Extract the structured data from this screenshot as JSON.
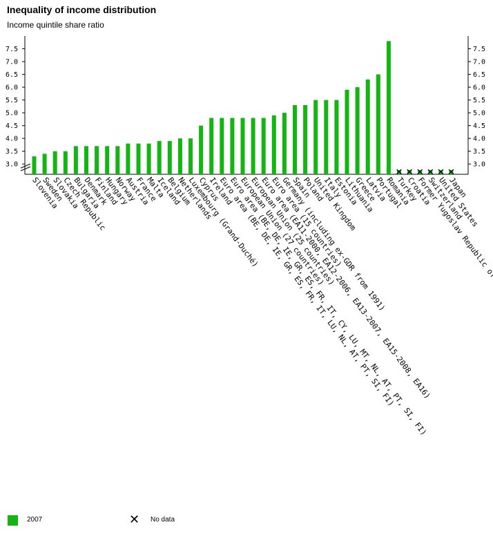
{
  "title": "Inequality of income distribution",
  "subtitle": "Income quintile share ratio",
  "legend": {
    "series_label": "2007",
    "nodata_label": "No data",
    "series_color": "#12b512",
    "nodata_icon": "x-mark-icon"
  },
  "chart_data": {
    "type": "bar",
    "title": "Inequality of income distribution",
    "subtitle": "Income quintile share ratio",
    "ylim": [
      2.5,
      8.0
    ],
    "yticks": [
      "3.0",
      "3.5",
      "4.0",
      "4.5",
      "5.0",
      "5.5",
      "6.0",
      "6.5",
      "7.0",
      "7.5"
    ],
    "axis_break": true,
    "grid": false,
    "series": [
      {
        "name": "2007",
        "color": "#12b512"
      }
    ],
    "categories": [
      "Slovenia",
      "Sweden",
      "Slovakia",
      "Czech Republic",
      "Bulgaria",
      "Denmark",
      "Finland",
      "Hungary",
      "Norway",
      "Austria",
      "France",
      "Malta",
      "Iceland",
      "Belgium",
      "Netherlands",
      "Luxembourg (Grand-Duché)",
      "Cyprus",
      "Ireland",
      "Euro area (BE, DE, IE, GR, ES, FR, IT, LU, NL, AT, PT, SI, FI)",
      "Euro area (BE, DE, IE, GR, ES, FR, IT, CY, LU, MT, NL, AT, PT, SI, FI)",
      "European Union (27 countries)",
      "European Union (25 countries)",
      "Euro area (EA11-2000, EA12-2006, EA13-2007, EA15-2008, EA16)",
      "Euro area (15 countries)",
      "Germany (including ex-GDR from 1991)",
      "Spain",
      "Poland",
      "United Kingdom",
      "Italy",
      "Estonia",
      "Lithuania",
      "Greece",
      "Latvia",
      "Portugal",
      "Romania",
      "Turkey",
      "Croatia",
      "Former Yugoslav Republic of Macedonia, the",
      "Switzerland",
      "United States",
      "Japan"
    ],
    "values": [
      3.3,
      3.4,
      3.5,
      3.5,
      3.7,
      3.7,
      3.7,
      3.7,
      3.7,
      3.8,
      3.8,
      3.8,
      3.9,
      3.9,
      4.0,
      4.0,
      4.5,
      4.8,
      4.8,
      4.8,
      4.8,
      4.8,
      4.8,
      4.9,
      5.0,
      5.3,
      5.3,
      5.5,
      5.5,
      5.5,
      5.9,
      6.0,
      6.3,
      6.5,
      7.8,
      null,
      null,
      null,
      null,
      null,
      null
    ]
  }
}
